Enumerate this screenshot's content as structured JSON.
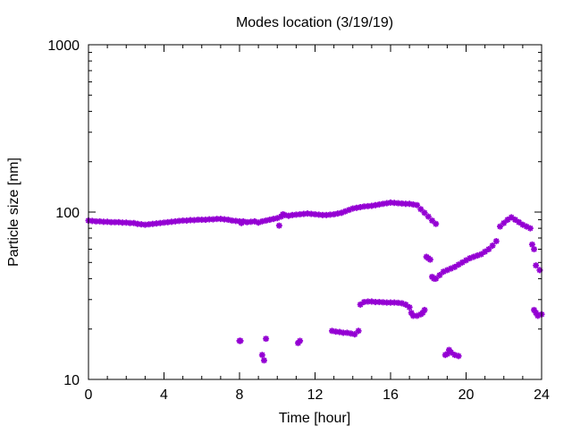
{
  "chart_data": {
    "type": "scatter",
    "title": "Modes location (3/19/19)",
    "xlabel": "Time [hour]",
    "ylabel": "Particle size [nm]",
    "xlim": [
      0,
      24
    ],
    "ylim": [
      10,
      1000
    ],
    "yscale": "log",
    "xticks": [
      0,
      4,
      8,
      12,
      16,
      20,
      24
    ],
    "xtick_labels": [
      "0",
      "4",
      "8",
      "12",
      "16",
      "20",
      "24"
    ],
    "yticks": [
      10,
      100,
      1000
    ],
    "ytick_labels": [
      "10",
      "100",
      "1000"
    ],
    "grid": false,
    "legend": "none",
    "marker_color": "#9400D3",
    "series": [
      {
        "points": [
          [
            0.0,
            89
          ],
          [
            0.2,
            88.5
          ],
          [
            0.4,
            88
          ],
          [
            0.6,
            88
          ],
          [
            0.8,
            87.5
          ],
          [
            1.0,
            87.5
          ],
          [
            1.2,
            87
          ],
          [
            1.4,
            87
          ],
          [
            1.6,
            87
          ],
          [
            1.8,
            86.5
          ],
          [
            2.0,
            86.5
          ],
          [
            2.2,
            86
          ],
          [
            2.4,
            86
          ],
          [
            2.6,
            85
          ],
          [
            2.8,
            84.5
          ],
          [
            3.0,
            84
          ],
          [
            3.2,
            84.5
          ],
          [
            3.4,
            85
          ],
          [
            3.6,
            85.5
          ],
          [
            3.8,
            86
          ],
          [
            4.0,
            86.5
          ],
          [
            4.2,
            87
          ],
          [
            4.4,
            87.5
          ],
          [
            4.6,
            88
          ],
          [
            4.8,
            88.5
          ],
          [
            5.0,
            89
          ],
          [
            5.2,
            89
          ],
          [
            5.4,
            89.5
          ],
          [
            5.6,
            89.5
          ],
          [
            5.8,
            90
          ],
          [
            6.0,
            90
          ],
          [
            6.2,
            90
          ],
          [
            6.4,
            90.5
          ],
          [
            6.6,
            90.5
          ],
          [
            6.8,
            91
          ],
          [
            7.0,
            91
          ],
          [
            7.2,
            90.5
          ],
          [
            7.4,
            90
          ],
          [
            7.6,
            89
          ],
          [
            7.8,
            88.5
          ],
          [
            8.0,
            88
          ],
          [
            8.1,
            86
          ],
          [
            8.2,
            88
          ],
          [
            8.4,
            87
          ],
          [
            8.6,
            87.5
          ],
          [
            8.8,
            88
          ],
          [
            9.0,
            86.5
          ],
          [
            9.2,
            88
          ],
          [
            9.4,
            89
          ],
          [
            9.6,
            90
          ],
          [
            9.8,
            91
          ],
          [
            10.0,
            92
          ],
          [
            10.2,
            94
          ],
          [
            10.3,
            97
          ],
          [
            10.4,
            96
          ],
          [
            10.6,
            95
          ],
          [
            10.8,
            96
          ],
          [
            11.0,
            96.5
          ],
          [
            11.2,
            97
          ],
          [
            11.4,
            97.5
          ],
          [
            11.6,
            98
          ],
          [
            11.8,
            97.5
          ],
          [
            12.0,
            97
          ],
          [
            12.2,
            96.5
          ],
          [
            12.4,
            96
          ],
          [
            12.6,
            96
          ],
          [
            12.8,
            96.5
          ],
          [
            13.0,
            97
          ],
          [
            13.2,
            98
          ],
          [
            13.4,
            99
          ],
          [
            13.6,
            101
          ],
          [
            13.8,
            103
          ],
          [
            14.0,
            105
          ],
          [
            14.2,
            106
          ],
          [
            14.4,
            107
          ],
          [
            14.6,
            108
          ],
          [
            14.8,
            108.5
          ],
          [
            15.0,
            109
          ],
          [
            15.2,
            110
          ],
          [
            15.4,
            111
          ],
          [
            15.6,
            112
          ],
          [
            15.8,
            113
          ],
          [
            16.0,
            114
          ],
          [
            16.2,
            113.5
          ],
          [
            16.4,
            113
          ],
          [
            16.6,
            112.5
          ],
          [
            16.8,
            112
          ],
          [
            17.0,
            112
          ],
          [
            17.2,
            111
          ],
          [
            17.4,
            110
          ],
          [
            17.6,
            104
          ],
          [
            17.8,
            99
          ],
          [
            18.0,
            94
          ],
          [
            18.2,
            89
          ],
          [
            18.4,
            85
          ],
          [
            10.1,
            83
          ],
          [
            8.0,
            17
          ],
          [
            8.05,
            17
          ],
          [
            9.2,
            14
          ],
          [
            9.3,
            13
          ],
          [
            9.4,
            17.5
          ],
          [
            11.1,
            16.5
          ],
          [
            11.2,
            17
          ],
          [
            12.9,
            19.5
          ],
          [
            13.1,
            19.3
          ],
          [
            13.3,
            19.2
          ],
          [
            13.5,
            19
          ],
          [
            13.7,
            19
          ],
          [
            13.9,
            18.8
          ],
          [
            14.1,
            18.6
          ],
          [
            14.3,
            19.5
          ],
          [
            14.4,
            28
          ],
          [
            14.6,
            29
          ],
          [
            14.8,
            29.2
          ],
          [
            15.0,
            29.2
          ],
          [
            15.2,
            29
          ],
          [
            15.4,
            29
          ],
          [
            15.6,
            28.9
          ],
          [
            15.8,
            28.8
          ],
          [
            16.0,
            28.8
          ],
          [
            16.2,
            28.8
          ],
          [
            16.4,
            28.7
          ],
          [
            16.6,
            28.5
          ],
          [
            16.8,
            28
          ],
          [
            17.0,
            27
          ],
          [
            17.1,
            25
          ],
          [
            17.2,
            24
          ],
          [
            17.4,
            24
          ],
          [
            17.6,
            24.5
          ],
          [
            17.7,
            25
          ],
          [
            17.8,
            26
          ],
          [
            17.9,
            54
          ],
          [
            18.0,
            53
          ],
          [
            18.1,
            52
          ],
          [
            18.2,
            41
          ],
          [
            18.3,
            40
          ],
          [
            18.4,
            40
          ],
          [
            18.6,
            42
          ],
          [
            18.8,
            44
          ],
          [
            19.0,
            45
          ],
          [
            19.2,
            46
          ],
          [
            19.4,
            47
          ],
          [
            19.6,
            48.5
          ],
          [
            19.8,
            50
          ],
          [
            20.0,
            51.5
          ],
          [
            20.2,
            53
          ],
          [
            20.4,
            54
          ],
          [
            20.6,
            55
          ],
          [
            20.8,
            56
          ],
          [
            21.0,
            58
          ],
          [
            21.2,
            60
          ],
          [
            21.4,
            63
          ],
          [
            21.6,
            67
          ],
          [
            21.8,
            82
          ],
          [
            22.0,
            86
          ],
          [
            22.2,
            90
          ],
          [
            22.4,
            93
          ],
          [
            22.6,
            90
          ],
          [
            22.8,
            87
          ],
          [
            23.0,
            84
          ],
          [
            23.2,
            82
          ],
          [
            23.4,
            80
          ],
          [
            23.5,
            64
          ],
          [
            23.6,
            60
          ],
          [
            23.7,
            48
          ],
          [
            23.9,
            45
          ],
          [
            24.1,
            43
          ],
          [
            24.3,
            42
          ],
          [
            24.5,
            41
          ],
          [
            24.7,
            40
          ],
          [
            18.9,
            14
          ],
          [
            19.0,
            14.2
          ],
          [
            19.1,
            15
          ],
          [
            19.2,
            14.5
          ],
          [
            19.4,
            14
          ],
          [
            19.6,
            13.8
          ],
          [
            23.6,
            26
          ],
          [
            23.7,
            25
          ],
          [
            23.8,
            24
          ],
          [
            24.0,
            24.5
          ],
          [
            24.2,
            25
          ],
          [
            24.4,
            26
          ],
          [
            24.6,
            27
          ],
          [
            24.8,
            27.5
          ]
        ]
      }
    ]
  }
}
